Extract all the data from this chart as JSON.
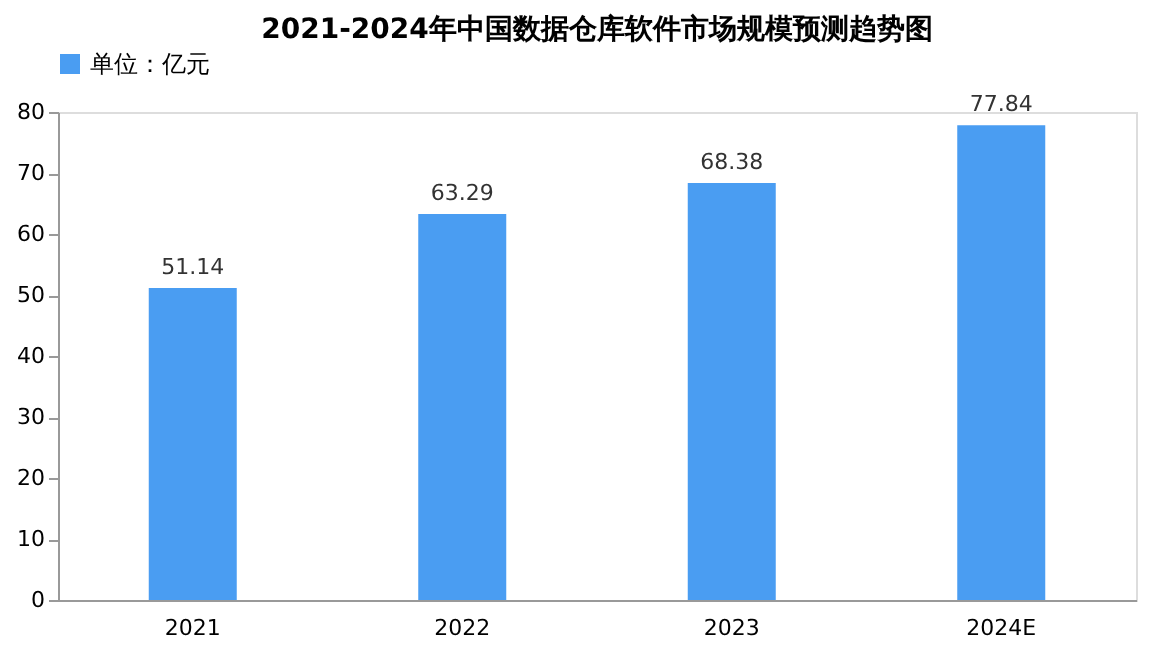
{
  "chart_data": {
    "type": "bar",
    "title": "2021-2024年中国数据仓库软件市场规模预测趋势图",
    "categories": [
      "2021",
      "2022",
      "2023",
      "2024E"
    ],
    "series": [
      {
        "name": "单位：亿元",
        "color": "#4a9df2",
        "values": [
          51.14,
          63.29,
          68.38,
          77.84
        ]
      }
    ],
    "ylim": [
      0,
      80
    ],
    "yticks": [
      0,
      10,
      20,
      30,
      40,
      50,
      60,
      70,
      80
    ],
    "grid": false,
    "legend": "top",
    "data_labels": true
  }
}
